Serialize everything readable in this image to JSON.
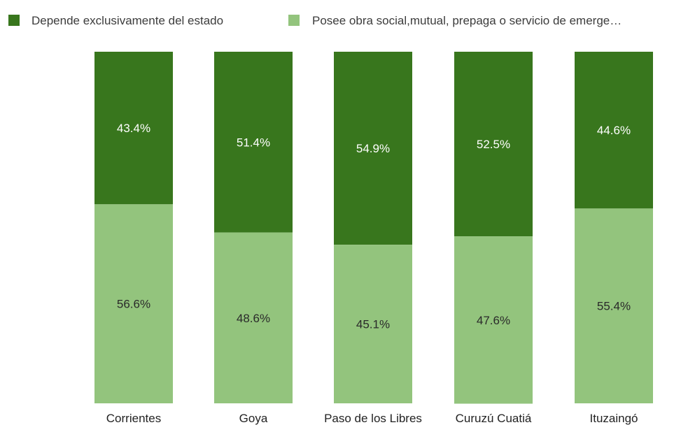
{
  "chart_data": {
    "type": "bar",
    "stacked": true,
    "percent_stacked": true,
    "categories": [
      "Corrientes",
      "Goya",
      "Paso de los Libres",
      "Curuzú Cuatiá",
      "Ituzaingó"
    ],
    "series": [
      {
        "name": "Depende exclusivamente del estado",
        "color": "#38761d",
        "values": [
          43.4,
          51.4,
          54.9,
          52.5,
          44.6
        ],
        "labels": [
          "43.4%",
          "51.4%",
          "54.9%",
          "52.5%",
          "44.6%"
        ]
      },
      {
        "name": "Posee obra social,mutual, prepaga o servicio de emerge…",
        "color": "#93c47d",
        "values": [
          56.6,
          48.6,
          45.1,
          47.6,
          55.4
        ],
        "labels": [
          "56.6%",
          "48.6%",
          "45.1%",
          "47.6%",
          "55.4%"
        ]
      }
    ],
    "ylim": [
      0,
      100
    ],
    "legend_position": "top-left",
    "grid": false
  }
}
